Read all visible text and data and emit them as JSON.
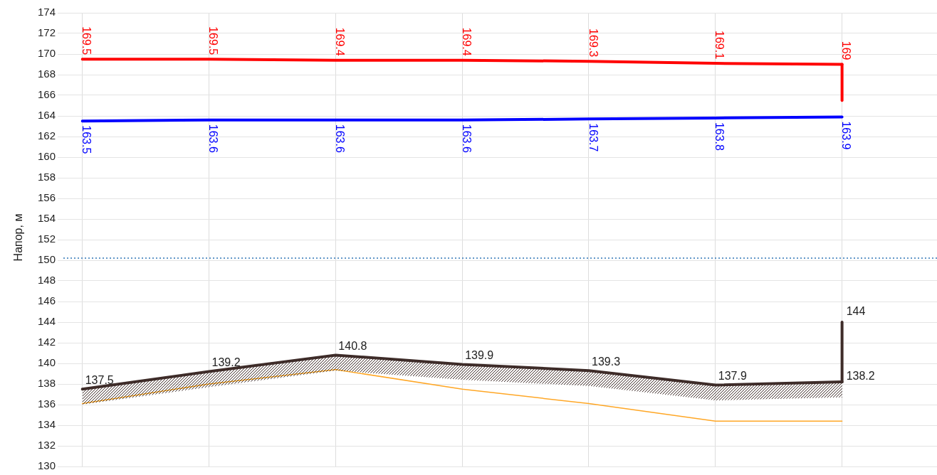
{
  "chart_data": {
    "type": "line",
    "ylabel": "Напор, м",
    "categories": [
      null,
      null,
      null,
      null,
      null,
      null,
      null
    ],
    "ylim": [
      130,
      174
    ],
    "yticks": [
      130,
      132,
      134,
      136,
      138,
      140,
      142,
      144,
      146,
      148,
      150,
      152,
      154,
      156,
      158,
      160,
      162,
      164,
      166,
      168,
      170,
      172,
      174
    ],
    "grid": true,
    "tick_labels": "y",
    "legend": false,
    "marker": "none",
    "line_style": "solid",
    "ref_lines": [
      {
        "axis": "y",
        "value": 150.2,
        "color": "#2e75b6",
        "line_style": "dotted"
      }
    ],
    "annotations": [
      "144"
    ],
    "series": [
      {
        "color": "#ff0000",
        "values": [
          169.5,
          169.5,
          169.4,
          169.4,
          169.3,
          169.1,
          169
        ],
        "errors": [
          null,
          null,
          null,
          null,
          null,
          null,
          [
            165.5,
            169
          ]
        ],
        "value_labels": [
          "169.5",
          "169.5",
          "169.4",
          "169.4",
          "169.3",
          "169.1",
          "169"
        ]
      },
      {
        "color": "#0000ff",
        "values": [
          163.5,
          163.6,
          163.6,
          163.6,
          163.7,
          163.8,
          163.9
        ],
        "value_labels": [
          "163.5",
          "163.6",
          "163.6",
          "163.6",
          "163.7",
          "163.8",
          "163.9"
        ]
      },
      {
        "color": "#3e2c29",
        "values": [
          137.5,
          139.2,
          140.8,
          139.9,
          139.3,
          137.9,
          138.2
        ],
        "errors": [
          null,
          null,
          null,
          null,
          null,
          null,
          [
            138.2,
            144
          ]
        ],
        "value_labels": [
          "137.5",
          "139.2",
          "140.8",
          "139.9",
          "139.3",
          "137.9",
          "138.2"
        ]
      },
      {
        "color": "#ffa726",
        "values": [
          136.1,
          138.0,
          139.4,
          137.5,
          136.1,
          134.4,
          134.4
        ]
      }
    ]
  }
}
